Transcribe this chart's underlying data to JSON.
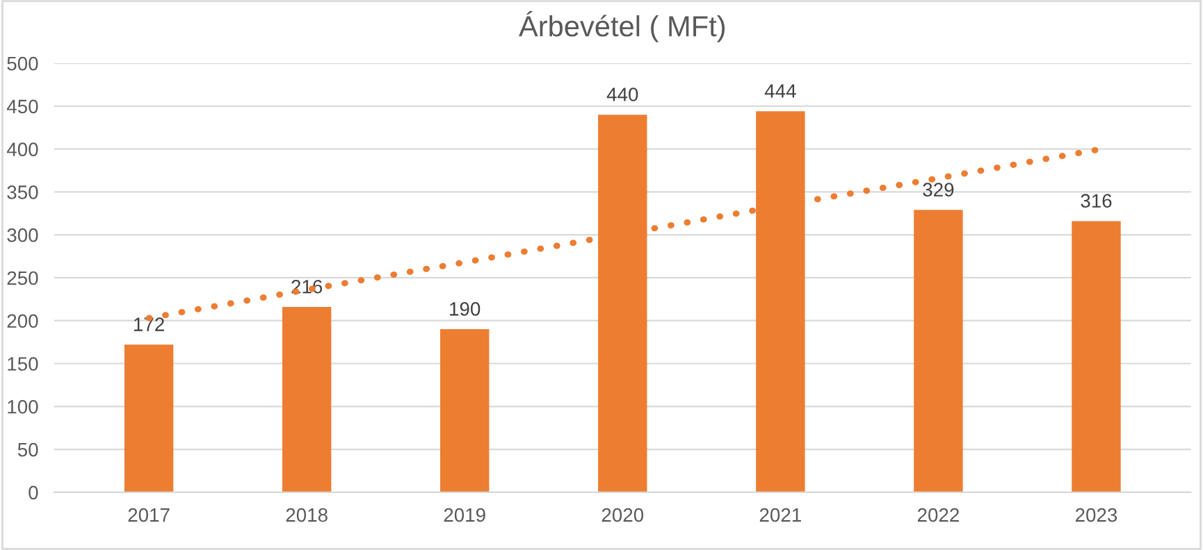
{
  "chart_data": {
    "type": "bar",
    "title": "Árbevétel ( MFt)",
    "categories": [
      "2017",
      "2018",
      "2019",
      "2020",
      "2021",
      "2022",
      "2023"
    ],
    "series": [
      {
        "color": "#ed7d31",
        "values": [
          172,
          216,
          190,
          440,
          444,
          329,
          316
        ],
        "data_labels": true
      },
      {
        "type": "line",
        "color": "#ed7d31",
        "values": [
          203,
          236,
          268,
          301,
          334,
          366,
          399
        ],
        "line_style": "dotted"
      }
    ],
    "ylim": [
      0,
      500
    ],
    "yticks": [
      0,
      50,
      100,
      150,
      200,
      250,
      300,
      350,
      400,
      450,
      500
    ],
    "grid": "y",
    "legend": false
  }
}
